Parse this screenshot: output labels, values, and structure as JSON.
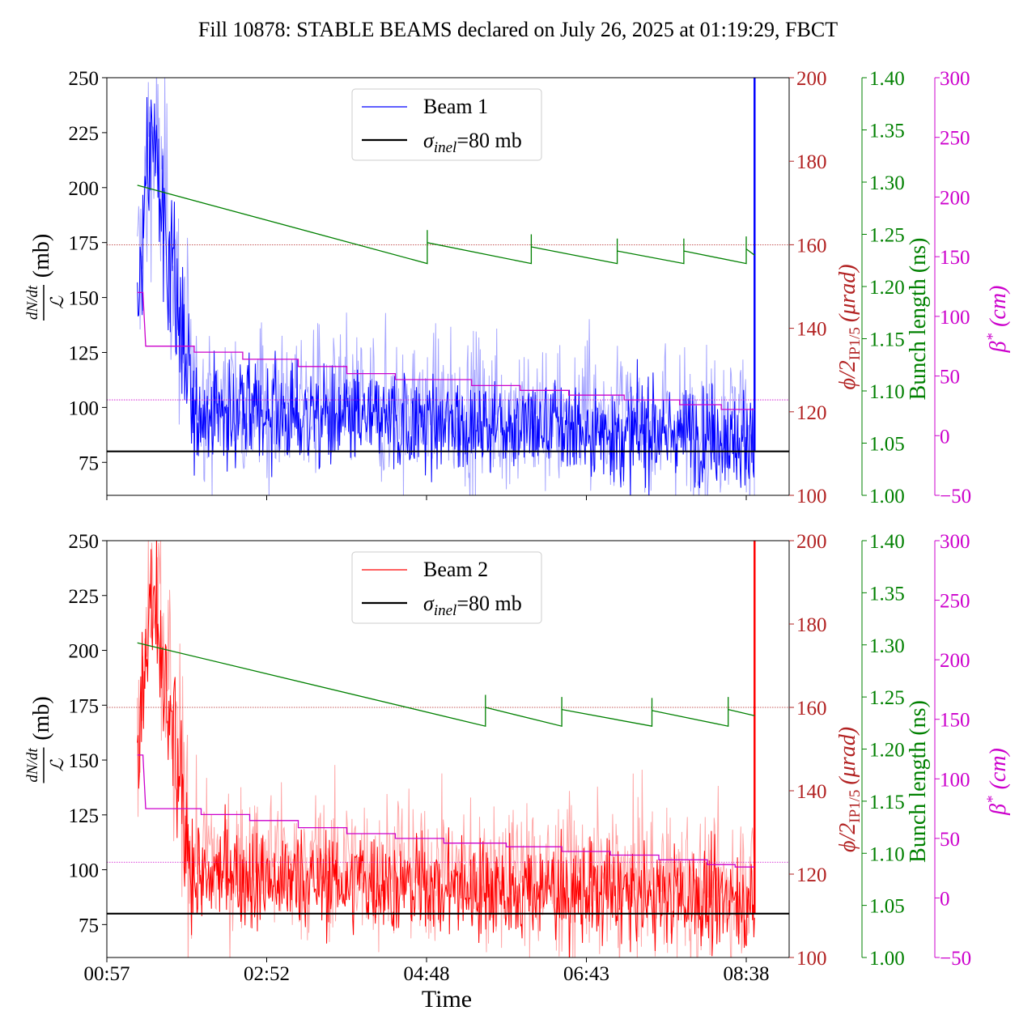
{
  "title": "Fill 10878: STABLE BEAMS declared on July 26, 2025 at 01:19:29, FBCT",
  "xlabel": "Time",
  "x_ticks": [
    "00:57",
    "02:52",
    "04:48",
    "06:43",
    "08:38"
  ],
  "axes_labels": {
    "left_main": "(mb)",
    "left_num": "dN/dt",
    "left_den": "ℒ",
    "crossing": "ϕ/2",
    "crossing_sub": "IP1/5",
    "crossing_unit": "(μrad)",
    "bunch": "Bunch length (ns)",
    "beta": "β",
    "beta_sup": "*",
    "beta_unit": "(cm)"
  },
  "colors": {
    "beam1": "#0000ff",
    "beam1_light": "#a6a6ff",
    "beam2": "#ff0000",
    "beam2_light": "#ffa6a6",
    "crossing": "#b22222",
    "bunch": "#008000",
    "beta": "#cc00cc",
    "reference": "#000000"
  },
  "chart_data": [
    {
      "type": "line",
      "panel": "top",
      "x_range": [
        "00:57",
        "08:38"
      ],
      "legend": {
        "placement": "top-center",
        "entries": [
          "Beam 1",
          "σinel=80 mb"
        ]
      },
      "left_axis": {
        "label": "dN/dt / L (mb)",
        "ylim": [
          60,
          250
        ],
        "ticks": [
          75,
          100,
          125,
          150,
          175,
          200,
          225,
          250
        ]
      },
      "crossing_axis": {
        "label": "ϕ/2 IP1/5 (μrad)",
        "ylim": [
          100,
          200
        ],
        "ticks": [
          100,
          120,
          140,
          160,
          180,
          200
        ],
        "reference_line": 160
      },
      "bunch_axis": {
        "label": "Bunch length (ns)",
        "ylim": [
          1.0,
          1.4
        ],
        "ticks": [
          "1.00",
          "1.05",
          "1.10",
          "1.15",
          "1.20",
          "1.25",
          "1.30",
          "1.35",
          "1.40"
        ]
      },
      "beta_axis": {
        "label": "β* (cm)",
        "ylim": [
          -50,
          300
        ],
        "ticks": [
          -50,
          0,
          50,
          100,
          150,
          200,
          250,
          300
        ],
        "reference_line": 30
      },
      "sigma_inel": 80,
      "series": [
        {
          "name": "Beam 1",
          "axis": "left",
          "description": "noisy cross-section, peaks ~250 at start, settles around 80-100"
        },
        {
          "name": "σinel=80 mb",
          "axis": "left",
          "constant": 80
        },
        {
          "axis": "bunch",
          "sawtooth": [
            {
              "t": [
                "01:19",
                "04:48"
              ],
              "y": [
                1.297,
                1.222
              ]
            },
            {
              "t": [
                "04:48",
                "06:03"
              ],
              "y": [
                1.242,
                1.222
              ]
            },
            {
              "t": [
                "06:03",
                "07:05"
              ],
              "y": [
                1.238,
                1.222
              ]
            },
            {
              "t": [
                "07:05",
                "07:53"
              ],
              "y": [
                1.234,
                1.222
              ]
            },
            {
              "t": [
                "07:53",
                "08:38"
              ],
              "y": [
                1.234,
                1.222
              ]
            },
            {
              "t": [
                "08:38",
                "08:44"
              ],
              "y": [
                1.236,
                1.23
              ]
            }
          ]
        },
        {
          "axis": "beta",
          "steps": [
            {
              "t": [
                "01:19",
                "01:23"
              ],
              "y": 120
            },
            {
              "t": [
                "01:25",
                "02:00"
              ],
              "y": 75
            },
            {
              "t": [
                "02:00",
                "02:35"
              ],
              "y": 70
            },
            {
              "t": [
                "02:35",
                "03:15"
              ],
              "y": 64
            },
            {
              "t": [
                "03:15",
                "03:50"
              ],
              "y": 58
            },
            {
              "t": [
                "03:50",
                "04:25"
              ],
              "y": 52
            },
            {
              "t": [
                "04:25",
                "05:20"
              ],
              "y": 47
            },
            {
              "t": [
                "05:20",
                "05:55"
              ],
              "y": 42
            },
            {
              "t": [
                "05:55",
                "06:30"
              ],
              "y": 38
            },
            {
              "t": [
                "06:30",
                "07:10"
              ],
              "y": 34
            },
            {
              "t": [
                "07:10",
                "07:50"
              ],
              "y": 30
            },
            {
              "t": [
                "07:50",
                "08:20"
              ],
              "y": 26
            },
            {
              "t": [
                "08:20",
                "08:44"
              ],
              "y": 22
            }
          ]
        }
      ]
    },
    {
      "type": "line",
      "panel": "bottom",
      "x_range": [
        "00:57",
        "08:38"
      ],
      "legend": {
        "placement": "top-center",
        "entries": [
          "Beam 2",
          "σinel=80 mb"
        ]
      },
      "left_axis": {
        "label": "dN/dt / L (mb)",
        "ylim": [
          60,
          250
        ],
        "ticks": [
          75,
          100,
          125,
          150,
          175,
          200,
          225,
          250
        ]
      },
      "crossing_axis": {
        "label": "ϕ/2 IP1/5 (μrad)",
        "ylim": [
          100,
          200
        ],
        "ticks": [
          100,
          120,
          140,
          160,
          180,
          200
        ],
        "reference_line": 160
      },
      "bunch_axis": {
        "label": "Bunch length (ns)",
        "ylim": [
          1.0,
          1.4
        ],
        "ticks": [
          "1.00",
          "1.05",
          "1.10",
          "1.15",
          "1.20",
          "1.25",
          "1.30",
          "1.35",
          "1.40"
        ]
      },
      "beta_axis": {
        "label": "β* (cm)",
        "ylim": [
          -50,
          300
        ],
        "ticks": [
          -50,
          0,
          50,
          100,
          150,
          200,
          250,
          300
        ],
        "reference_line": 30
      },
      "sigma_inel": 80,
      "series": [
        {
          "name": "Beam 2",
          "axis": "left",
          "description": "noisy cross-section, peaks >250 at start, settles around 80-100"
        },
        {
          "name": "σinel=80 mb",
          "axis": "left",
          "constant": 80
        },
        {
          "axis": "bunch",
          "sawtooth": [
            {
              "t": [
                "01:19",
                "05:30"
              ],
              "y": [
                1.302,
                1.222
              ]
            },
            {
              "t": [
                "05:30",
                "06:25"
              ],
              "y": [
                1.24,
                1.222
              ]
            },
            {
              "t": [
                "06:25",
                "07:30"
              ],
              "y": [
                1.238,
                1.222
              ]
            },
            {
              "t": [
                "07:30",
                "08:25"
              ],
              "y": [
                1.237,
                1.222
              ]
            },
            {
              "t": [
                "08:25",
                "08:44"
              ],
              "y": [
                1.238,
                1.232
              ]
            }
          ]
        },
        {
          "axis": "beta",
          "steps": [
            {
              "t": [
                "01:19",
                "01:23"
              ],
              "y": 120
            },
            {
              "t": [
                "01:25",
                "02:05"
              ],
              "y": 75
            },
            {
              "t": [
                "02:05",
                "02:40"
              ],
              "y": 70
            },
            {
              "t": [
                "02:40",
                "03:15"
              ],
              "y": 65
            },
            {
              "t": [
                "03:15",
                "03:50"
              ],
              "y": 59
            },
            {
              "t": [
                "03:50",
                "04:25"
              ],
              "y": 54
            },
            {
              "t": [
                "04:25",
                "05:00"
              ],
              "y": 50
            },
            {
              "t": [
                "05:00",
                "05:45"
              ],
              "y": 46
            },
            {
              "t": [
                "05:45",
                "06:25"
              ],
              "y": 43
            },
            {
              "t": [
                "06:25",
                "07:00"
              ],
              "y": 39
            },
            {
              "t": [
                "07:00",
                "07:35"
              ],
              "y": 36
            },
            {
              "t": [
                "07:35",
                "08:10"
              ],
              "y": 32
            },
            {
              "t": [
                "08:10",
                "08:30"
              ],
              "y": 28
            },
            {
              "t": [
                "08:30",
                "08:44"
              ],
              "y": 26
            }
          ]
        }
      ]
    }
  ]
}
